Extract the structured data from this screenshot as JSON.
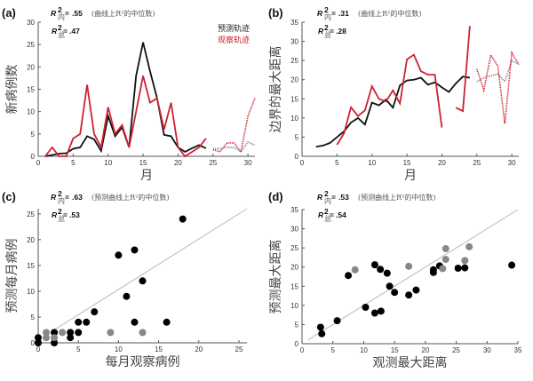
{
  "chart_data": [
    {
      "panel": "(a)",
      "type": "line",
      "r2_in": ".55",
      "r2_in_label": "R",
      "r2_in_sub": "内",
      "note": "(曲线上R²的中位数)",
      "r2_total": ".47",
      "r2_total_sub": "总",
      "xlabel": "月",
      "ylabel": "新病例数",
      "xlim": [
        0,
        31
      ],
      "ylim": [
        0,
        30
      ],
      "xticks": [
        0,
        5,
        10,
        15,
        20,
        25,
        30
      ],
      "yticks": [
        0,
        5,
        10,
        15,
        20,
        25,
        30
      ],
      "legend": {
        "placement": "top-right",
        "entries": [
          {
            "label": "预测轨迹",
            "color": "#222222"
          },
          {
            "label": "观察轨迹",
            "color": "#cc2233"
          }
        ]
      },
      "series": [
        {
          "name": "预测轨迹",
          "color": "#111111",
          "x": [
            1,
            2,
            3,
            4,
            5,
            6,
            7,
            8,
            9,
            10,
            11,
            12,
            13,
            14,
            15,
            16,
            17,
            18,
            19,
            20,
            21,
            22,
            23,
            24
          ],
          "y": [
            0,
            0.3,
            0.6,
            0.7,
            1.7,
            2,
            4.5,
            3.8,
            1.2,
            9,
            4.5,
            6.5,
            2,
            18,
            25.5,
            19,
            13,
            4.8,
            4.5,
            2,
            1,
            1.8,
            2.5,
            1.8
          ]
        },
        {
          "name": "观察轨迹",
          "color": "#cc2233",
          "x": [
            1,
            2,
            3,
            4,
            5,
            6,
            7,
            8,
            9,
            10,
            11,
            12,
            13,
            14,
            15,
            16,
            17,
            18,
            19,
            20,
            21,
            22,
            23,
            24
          ],
          "y": [
            0,
            2,
            0,
            0,
            4,
            5,
            16,
            5,
            2,
            11,
            5,
            7,
            2,
            10,
            18,
            12,
            13,
            6,
            12,
            2,
            0,
            1,
            2,
            4
          ]
        },
        {
          "color": "#888888",
          "style": "dotted",
          "x": [
            25,
            26,
            27,
            28,
            29,
            30,
            31
          ],
          "y": [
            1.7,
            1.7,
            2,
            2,
            1,
            3.2,
            2.5
          ]
        },
        {
          "color": "#cc2233",
          "style": "dotted",
          "x": [
            25,
            26,
            27,
            28,
            29,
            30,
            31
          ],
          "y": [
            1.5,
            1,
            3,
            3,
            1,
            9,
            13
          ]
        }
      ]
    },
    {
      "panel": "(b)",
      "type": "line",
      "r2_in": ".31",
      "r2_in_label": "R",
      "r2_in_sub": "内",
      "note": "(曲线上R²的中位数)",
      "r2_total": ".28",
      "r2_total_sub": "总",
      "xlabel": "月",
      "ylabel": "边界的最大距离",
      "xlim": [
        0,
        31
      ],
      "ylim": [
        0,
        35
      ],
      "xticks": [
        0,
        5,
        10,
        15,
        20,
        25,
        30
      ],
      "yticks": [
        0,
        5,
        10,
        15,
        20,
        25,
        30,
        35
      ],
      "series": [
        {
          "color": "#111111",
          "x": [
            2,
            3,
            4,
            5,
            6,
            7,
            8,
            9,
            10,
            11,
            12,
            13,
            14,
            15,
            16,
            17,
            18,
            19,
            20,
            21,
            22,
            23,
            24
          ],
          "y": [
            2.5,
            2.8,
            3.5,
            5,
            6.5,
            8.8,
            10,
            8.3,
            14,
            13.3,
            14.8,
            12.7,
            18.5,
            19.8,
            20,
            20.5,
            18.7,
            19.3,
            18,
            16.8,
            19,
            20.8,
            20.5
          ]
        },
        {
          "color": "#cc2233",
          "x": [
            5,
            6,
            7,
            8,
            9,
            10,
            11,
            12,
            13,
            14,
            15,
            16,
            17,
            18,
            19,
            20
          ],
          "y": [
            3,
            6,
            12.8,
            10.5,
            12,
            18.3,
            15,
            14.3,
            17.2,
            13.8,
            25.3,
            26.5,
            22.2,
            21.3,
            21.3,
            7.5
          ]
        },
        {
          "color": "#cc2233",
          "x": [
            22,
            23,
            24
          ],
          "y": [
            12.7,
            11.8,
            34
          ]
        },
        {
          "color": "#888888",
          "style": "dotted",
          "x": [
            25,
            26,
            27,
            28,
            29,
            30,
            31
          ],
          "y": [
            19.5,
            20.5,
            21,
            21.5,
            19.5,
            25,
            24
          ]
        },
        {
          "color": "#cc2233",
          "style": "dotted",
          "x": [
            25,
            26,
            27,
            28,
            29,
            30,
            31
          ],
          "y": [
            22.8,
            17.3,
            26.4,
            23.6,
            8.5,
            27,
            24
          ]
        }
      ]
    },
    {
      "panel": "(c)",
      "type": "scatter",
      "r2_in": ".63",
      "r2_in_label": "R",
      "r2_in_sub": "内",
      "note": "(预测曲线上R²的中位数)",
      "r2_total": ".53",
      "r2_total_sub": "总",
      "xlabel": "每月观察病例",
      "ylabel": "预测每月病例",
      "xlim": [
        0,
        26
      ],
      "ylim": [
        0,
        26
      ],
      "xticks": [
        0,
        5,
        10,
        15,
        20,
        25
      ],
      "yticks": [
        0,
        5,
        10,
        15,
        20,
        25
      ],
      "reference_line": [
        [
          2,
          2.5
        ],
        [
          26,
          26
        ]
      ],
      "series": [
        {
          "color": "#000000",
          "x": [
            0,
            0,
            2,
            2,
            4,
            4,
            5,
            5,
            6,
            7,
            10,
            11,
            12,
            12,
            13,
            16,
            18
          ],
          "y": [
            0,
            1,
            0,
            2,
            1,
            2,
            2,
            4,
            4,
            6,
            17,
            9,
            18,
            4,
            12,
            4,
            24
          ]
        },
        {
          "color": "#888888",
          "x": [
            1,
            1,
            2,
            3,
            9,
            13
          ],
          "y": [
            1,
            2,
            1,
            2,
            2,
            2
          ]
        }
      ]
    },
    {
      "panel": "(d)",
      "type": "scatter",
      "r2_in": ".53",
      "r2_in_label": "R",
      "r2_in_sub": "内",
      "note": "(预测曲线上R²的中位数)",
      "r2_total": ".54",
      "r2_total_sub": "总",
      "xlabel": "观测最大距离",
      "ylabel": "预测最大距离",
      "xlim": [
        0,
        35
      ],
      "ylim": [
        0,
        35
      ],
      "xticks": [
        0,
        5,
        10,
        15,
        20,
        25,
        30,
        35
      ],
      "yticks": [
        0,
        5,
        10,
        15,
        20,
        25,
        30,
        35
      ],
      "reference_line": [
        [
          1,
          1
        ],
        [
          35,
          35
        ]
      ],
      "series": [
        {
          "color": "#000000",
          "x": [
            3,
            3.2,
            5.7,
            7.5,
            10.3,
            11.8,
            11.8,
            12.7,
            12.8,
            13.8,
            14.2,
            15,
            17.3,
            18.5,
            21.3,
            21.3,
            22.3,
            25.3,
            26.4,
            34
          ],
          "y": [
            4.3,
            2.6,
            6,
            17.8,
            9.5,
            20.6,
            8,
            19.4,
            8.5,
            18.4,
            15,
            13.4,
            12.7,
            14,
            19.3,
            18.6,
            20.3,
            19.7,
            19.8,
            20.5
          ]
        },
        {
          "color": "#888888",
          "x": [
            8.6,
            17.3,
            22.8,
            23.3,
            23.3,
            26.4,
            27.1
          ],
          "y": [
            19.3,
            20.2,
            19.6,
            22,
            24.8,
            21.7,
            25.3
          ]
        }
      ]
    }
  ]
}
